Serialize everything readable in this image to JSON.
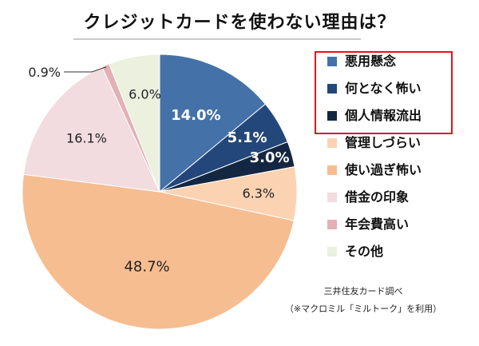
{
  "chart_data": {
    "type": "pie",
    "title": "クレジットカードを使わない理由は？",
    "slices": [
      {
        "label": "悪用懸念",
        "value": 14.0,
        "value_label": "14.0%",
        "color": "#4472a8"
      },
      {
        "label": "何となく怖い",
        "value": 5.1,
        "value_label": "5.1%",
        "color": "#23477a"
      },
      {
        "label": "個人情報流出",
        "value": 3.0,
        "value_label": "3.0%",
        "color": "#142742"
      },
      {
        "label": "管理しづらい",
        "value": 6.3,
        "value_label": "6.3%",
        "color": "#fbd3b2"
      },
      {
        "label": "使い過ぎ怖い",
        "value": 48.7,
        "value_label": "48.7%",
        "color": "#f6bd91"
      },
      {
        "label": "借金の印象",
        "value": 16.1,
        "value_label": "16.1%",
        "color": "#f2dcdf"
      },
      {
        "label": "年会費高い",
        "value": 0.9,
        "value_label": "0.9%",
        "color": "#e3b0b5"
      },
      {
        "label": "その他",
        "value": 6.0,
        "value_label": "6.0%",
        "color": "#ebf0df"
      }
    ],
    "start_angle_deg": 0,
    "direction": "clockwise",
    "legend_position": "right",
    "highlighted_legend_items": [
      "悪用懸念",
      "何となく怖い",
      "個人情報流出"
    ]
  },
  "source_lines": [
    "三井住友カード調べ",
    "（※マクロミル「ミルトーク」を利用）"
  ]
}
